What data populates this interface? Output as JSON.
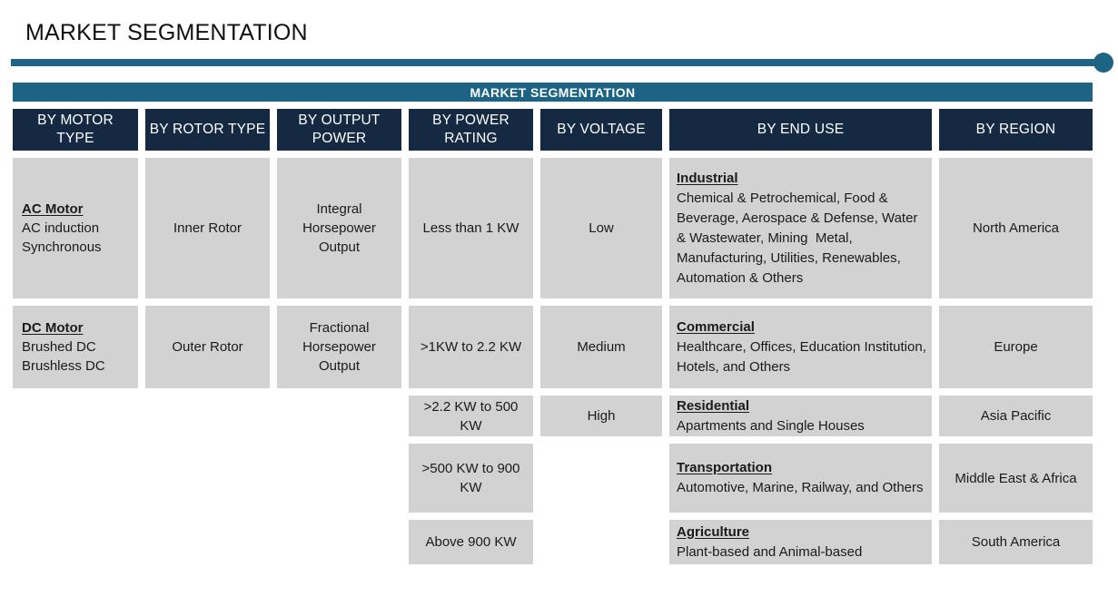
{
  "colors": {
    "teal": "#1d6484",
    "navy": "#152a42",
    "cell": "#d2d2d2"
  },
  "page_title": "MARKET SEGMENTATION",
  "banner": {
    "label": "MARKET SEGMENTATION"
  },
  "columns": [
    {
      "header": "BY MOTOR\nTYPE",
      "cells": [
        {
          "title": "AC Motor",
          "lines": [
            "AC induction",
            "Synchronous"
          ]
        },
        {
          "title": "DC Motor",
          "lines": [
            "Brushed DC",
            "Brushless DC"
          ]
        }
      ]
    },
    {
      "header": "BY ROTOR TYPE",
      "cells": [
        "Inner Rotor",
        "Outer Rotor"
      ]
    },
    {
      "header": "BY OUTPUT\nPOWER",
      "cells": [
        "Integral Horsepower Output",
        "Fractional Horsepower Output"
      ]
    },
    {
      "header": "BY POWER\nRATING",
      "cells": [
        "Less than 1 KW",
        ">1KW to 2.2 KW",
        ">2.2 KW to 500 KW",
        ">500 KW to 900 KW",
        "Above 900 KW"
      ]
    },
    {
      "header": "BY VOLTAGE",
      "cells": [
        "Low",
        "Medium",
        "High"
      ]
    },
    {
      "header": "BY END USE",
      "cells": [
        {
          "title": "Industrial",
          "body": "Chemical & Petrochemical, Food & Beverage, Aerospace & Defense, Water & Wastewater, Mining  Metal, Manufacturing, Utilities, Renewables, Automation & Others"
        },
        {
          "title": "Commercial",
          "body": "Healthcare, Offices, Education Institution, Hotels, and Others"
        },
        {
          "title": "Residential",
          "body": "Apartments and Single Houses"
        },
        {
          "title": "Transportation",
          "body": "Automotive, Marine, Railway, and Others"
        },
        {
          "title": "Agriculture",
          "body": "Plant-based and Animal-based"
        }
      ]
    },
    {
      "header": "BY REGION",
      "cells": [
        "North America",
        "Europe",
        "Asia Pacific",
        "Middle East & Africa",
        "South America"
      ]
    }
  ]
}
